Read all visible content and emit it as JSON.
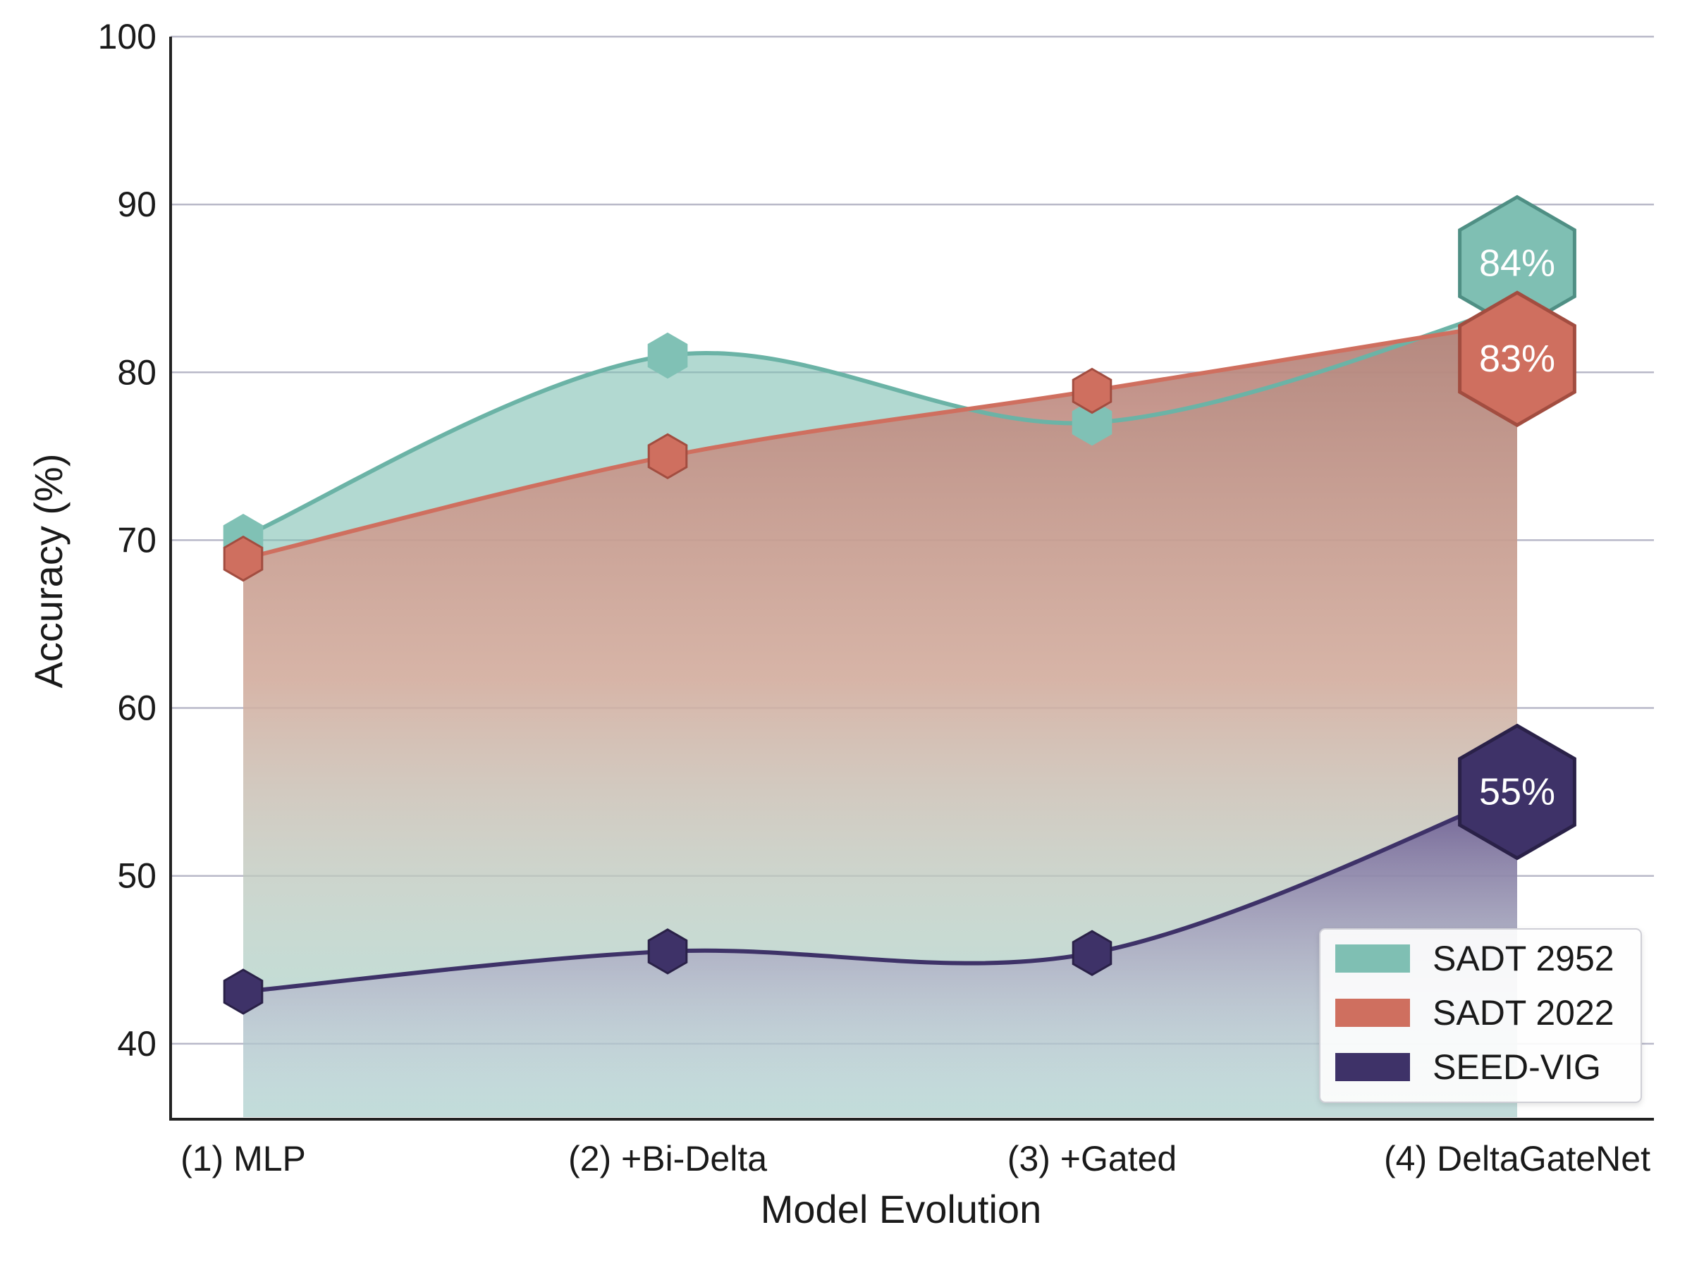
{
  "chart_data": {
    "type": "area",
    "title": "",
    "xlabel": "Model Evolution",
    "ylabel": "Accuracy (%)",
    "categories": [
      "(1) MLP",
      "(2) +Bi-Delta",
      "(3) +Gated",
      "(4) DeltaGateNet"
    ],
    "ylim": [
      35.5,
      100
    ],
    "yticks": [
      40,
      50,
      60,
      70,
      80,
      90,
      100
    ],
    "grid": true,
    "legend_position": "bottom-right",
    "series": [
      {
        "name": "SADT 2952",
        "color": "#7fbfb3",
        "values": [
          70.2,
          81.0,
          77.0,
          84.0
        ],
        "callout": "84%"
      },
      {
        "name": "SADT 2022",
        "color": "#cf6f5f",
        "values": [
          68.9,
          75.0,
          78.9,
          83.0
        ],
        "callout": "83%"
      },
      {
        "name": "SEED-VIG",
        "color": "#3e3268",
        "values": [
          43.1,
          45.5,
          45.4,
          55.0
        ],
        "callout": "55%"
      }
    ]
  }
}
